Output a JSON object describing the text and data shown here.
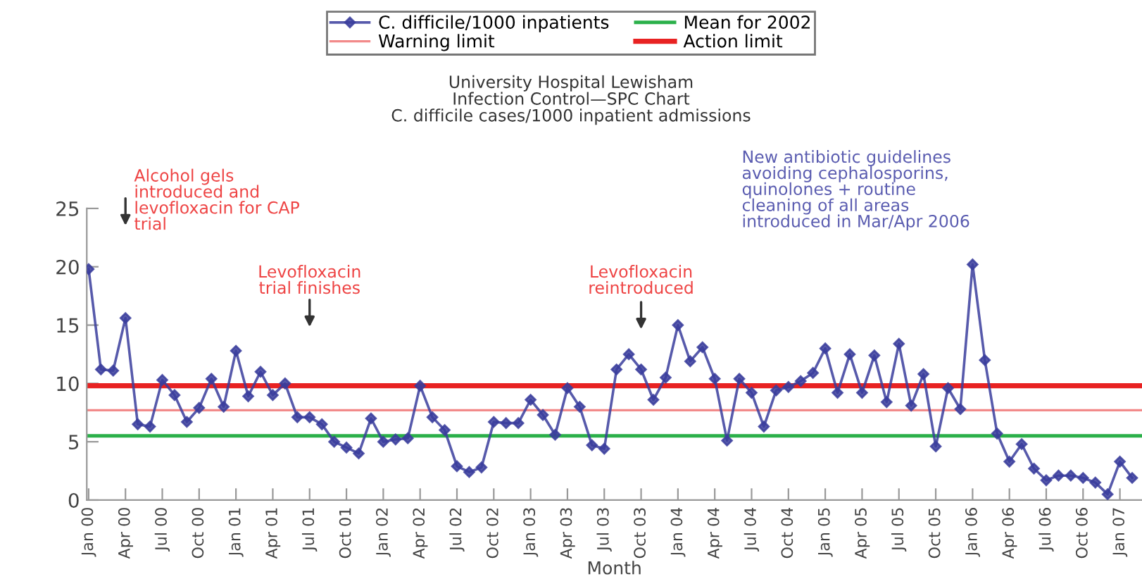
{
  "chart_data": {
    "type": "line",
    "title": "University Hospital Lewisham\nInfection Control—SPC Chart\nC. difficile cases/1000 inpatient admissions",
    "xlabel": "Month",
    "categories": [
      "Jan 00",
      null,
      null,
      "Apr 00",
      null,
      null,
      "Jul 00",
      null,
      null,
      "Oct 00",
      null,
      null,
      "Jan 01",
      null,
      null,
      "Apr 01",
      null,
      null,
      "Jul 01",
      null,
      null,
      "Oct 01",
      null,
      null,
      "Jan 02",
      null,
      null,
      "Apr 02",
      null,
      null,
      "Jul 02",
      null,
      null,
      "Oct 02",
      null,
      null,
      "Jan 03",
      null,
      null,
      "Apr 03",
      null,
      null,
      "Jul 03",
      null,
      null,
      "Oct 03",
      null,
      null,
      "Jan 04",
      null,
      null,
      "Apr 04",
      null,
      null,
      "Jul 04",
      null,
      null,
      "Oct 04",
      null,
      null,
      "Jan 05",
      null,
      null,
      "Apr 05",
      null,
      null,
      "Jul 05",
      null,
      null,
      "Oct 05",
      null,
      null,
      "Jan 06",
      null,
      null,
      "Apr 06",
      null,
      null,
      "Jul 06",
      null,
      null,
      "Oct 06",
      null,
      null,
      "Jan 07",
      null
    ],
    "series": [
      {
        "name": "C. difficile/1000 inpatients",
        "color": "#3a3d9c",
        "values": [
          19.8,
          11.2,
          11.1,
          15.6,
          6.5,
          6.3,
          10.3,
          9.0,
          6.7,
          7.9,
          10.4,
          8.0,
          12.8,
          8.9,
          11.0,
          9.0,
          10.0,
          7.1,
          7.1,
          6.5,
          5.0,
          4.5,
          4.0,
          7.0,
          5.0,
          5.2,
          5.3,
          9.8,
          7.1,
          6.0,
          2.9,
          2.4,
          2.8,
          6.7,
          6.6,
          6.6,
          8.6,
          7.3,
          5.6,
          9.6,
          8.0,
          4.7,
          4.4,
          11.2,
          12.5,
          11.2,
          8.6,
          10.5,
          15.0,
          11.9,
          13.1,
          10.4,
          5.1,
          10.4,
          9.2,
          6.3,
          9.4,
          9.7,
          10.2,
          10.9,
          13.0,
          9.2,
          12.5,
          9.2,
          12.4,
          8.4,
          13.4,
          8.1,
          10.8,
          4.6,
          9.6,
          7.8,
          20.2,
          12.0,
          5.7,
          3.3,
          4.8,
          2.7,
          1.7,
          2.1,
          2.1,
          1.9,
          1.5,
          0.5,
          3.3,
          1.9
        ]
      }
    ],
    "ref_lines": [
      {
        "axis": "y",
        "value": 5.5,
        "label": "Mean for 2002",
        "color": "#2bb04a"
      },
      {
        "axis": "y",
        "value": 7.7,
        "label": "Warning limit",
        "color": "#f28a8a"
      },
      {
        "axis": "y",
        "value": 9.8,
        "label": "Action limit",
        "color": "#e82222"
      }
    ],
    "annotations": [
      "Alcohol gels\nintroduced and\nlevofloxacin for CAP\ntrial",
      "Levofloxacin\ntrial finishes",
      "Levofloxacin\nreintroduced",
      "New antibiotic guidelines\navoiding cephalosporins,\nquinolones + routine\ncleaning of all areas\nintroduced in Mar/Apr 2006"
    ],
    "ylim": [
      0,
      25
    ],
    "yticks": [
      0,
      5,
      10,
      15,
      20,
      25
    ],
    "grid": false,
    "legend": "top",
    "marker": "diamond",
    "line_style": "solid"
  }
}
